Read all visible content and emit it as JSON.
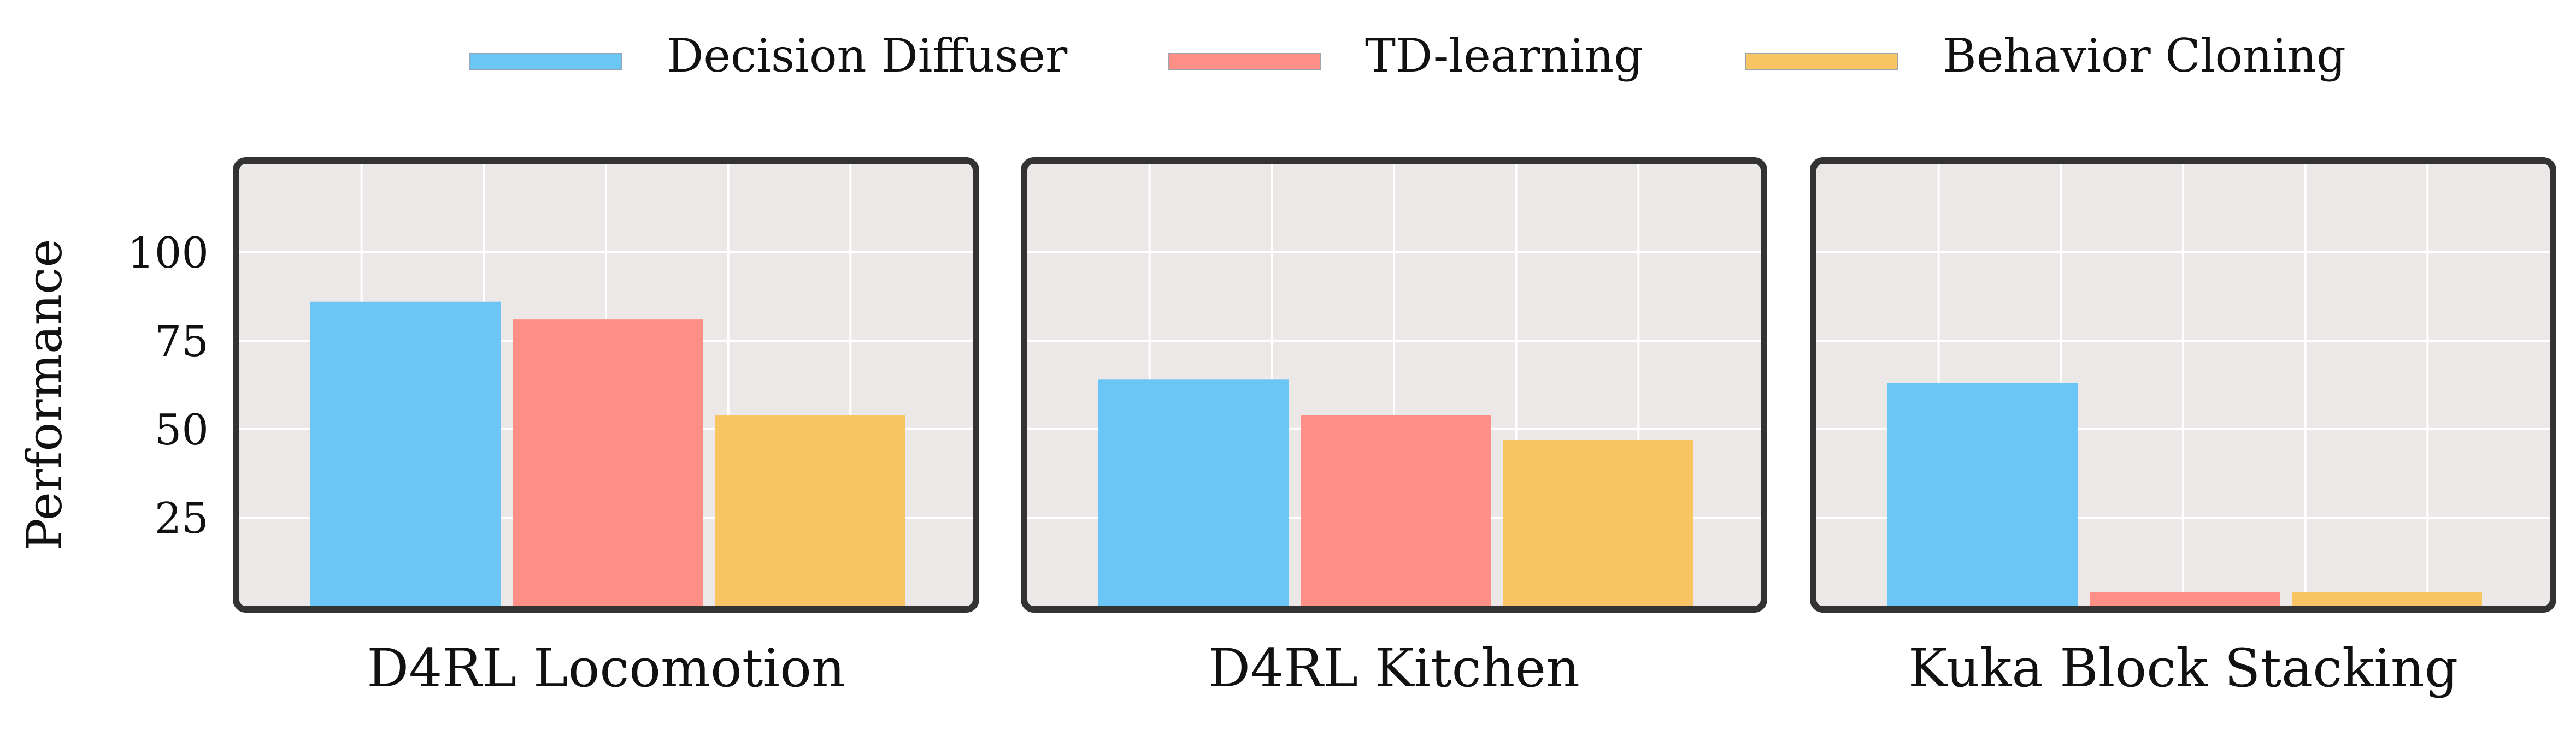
{
  "chart_data": {
    "type": "bar",
    "ylabel": "Performance",
    "yticks": [
      25,
      50,
      75,
      100
    ],
    "ylim": [
      0,
      125
    ],
    "grid": true,
    "legend_position": "top-center",
    "series": [
      {
        "name": "Decision Diffuser",
        "color": "#6cc6f5"
      },
      {
        "name": "TD-learning",
        "color": "#ff8f87"
      },
      {
        "name": "Behavior Cloning",
        "color": "#f9c463"
      }
    ],
    "panels": [
      {
        "title": "D4RL Locomotion",
        "values": [
          86,
          81,
          54
        ]
      },
      {
        "title": "D4RL Kitchen",
        "values": [
          64,
          54,
          47
        ]
      },
      {
        "title": "Kuka Block Stacking",
        "values": [
          63,
          4,
          4
        ]
      }
    ]
  }
}
